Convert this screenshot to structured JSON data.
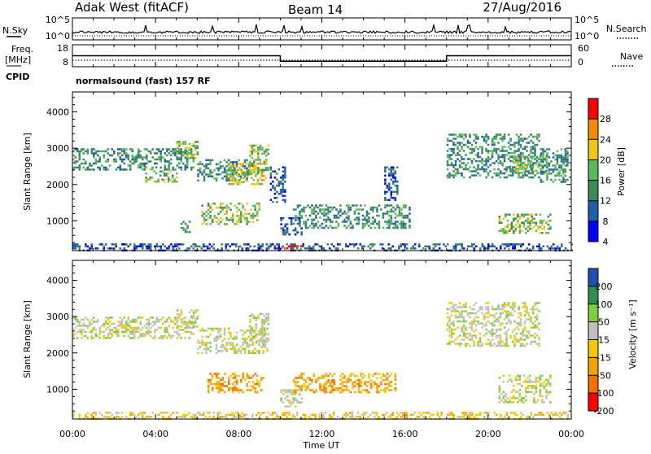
{
  "header": {
    "station": "Adak West (fitACF)",
    "beam": "Beam 14",
    "date": "27/Aug/2016"
  },
  "top_panels": {
    "nsky_label": "N.Sky",
    "nsky_ticks": [
      "10^5",
      "10^0"
    ],
    "nsearch_label": "N.Search",
    "freq_label_1": "Freq.",
    "freq_label_2": "[MHz]",
    "freq_ticks": [
      "18",
      "8"
    ],
    "nave_label": "Nave",
    "nave_ticks": [
      "60",
      "0"
    ],
    "cpid_label": "CPID",
    "cpid_text": "normalsound (fast) 157 RF"
  },
  "chart_data": [
    {
      "type": "heatmap",
      "panel": "power",
      "ylabel": "Slant Range [km]",
      "ylim": [
        180,
        4550
      ],
      "yticks": [
        1000,
        2000,
        3000,
        4000
      ],
      "xlim_hours": [
        0,
        24
      ],
      "colorbar_label": "Power [dB]",
      "colorbar_ticks": [
        "28",
        "24",
        "20",
        "16",
        "12",
        "8",
        "4"
      ],
      "colorbar_colors": [
        "#0000ff",
        "#1f5fa8",
        "#3a8a5a",
        "#5cb85c",
        "#f0c419",
        "#f58c00",
        "#ff0000"
      ],
      "frequency_hours": [
        0,
        10,
        18,
        24
      ],
      "frequency_mhz": [
        13,
        10.5,
        13,
        13
      ],
      "regions": [
        {
          "t0": 0.0,
          "t1": 5.8,
          "r0": 2400,
          "r1": 3000,
          "level": 2
        },
        {
          "t0": 3.5,
          "t1": 5.0,
          "r0": 2100,
          "r1": 2500,
          "level": 3
        },
        {
          "t0": 5.0,
          "t1": 6.0,
          "r0": 2700,
          "r1": 3200,
          "level": 3
        },
        {
          "t0": 6.0,
          "t1": 8.5,
          "r0": 2100,
          "r1": 2700,
          "level": 2
        },
        {
          "t0": 7.5,
          "t1": 9.3,
          "r0": 2000,
          "r1": 2600,
          "level": 4
        },
        {
          "t0": 8.5,
          "t1": 9.4,
          "r0": 2300,
          "r1": 3100,
          "level": 3
        },
        {
          "t0": 6.2,
          "t1": 9.0,
          "r0": 900,
          "r1": 1500,
          "level": 3
        },
        {
          "t0": 5.2,
          "t1": 5.6,
          "r0": 700,
          "r1": 1000,
          "level": 2
        },
        {
          "t0": 9.5,
          "t1": 10.2,
          "r0": 1500,
          "r1": 2500,
          "level": 1
        },
        {
          "t0": 10.6,
          "t1": 16.2,
          "r0": 800,
          "r1": 1450,
          "level": 2
        },
        {
          "t0": 10.0,
          "t1": 11.0,
          "r0": 600,
          "r1": 1100,
          "level": 1
        },
        {
          "t0": 15.0,
          "t1": 15.6,
          "r0": 1600,
          "r1": 2500,
          "level": 1
        },
        {
          "t0": 18.0,
          "t1": 22.5,
          "r0": 2200,
          "r1": 3400,
          "level": 2
        },
        {
          "t0": 21.0,
          "t1": 22.8,
          "r0": 2300,
          "r1": 2800,
          "level": 3
        },
        {
          "t0": 20.5,
          "t1": 23.0,
          "r0": 650,
          "r1": 1200,
          "level": 3
        },
        {
          "t0": 22.5,
          "t1": 23.8,
          "r0": 2100,
          "r1": 3000,
          "level": 2
        },
        {
          "t0": 0.0,
          "t1": 24.0,
          "r0": 180,
          "r1": 380,
          "level": 1
        },
        {
          "t0": 10.0,
          "t1": 11.0,
          "r0": 180,
          "r1": 330,
          "level": 6
        }
      ]
    },
    {
      "type": "heatmap",
      "panel": "velocity",
      "ylabel": "Slant Range [km]",
      "ylim": [
        180,
        4550
      ],
      "yticks": [
        1000,
        2000,
        3000,
        4000
      ],
      "xlim_hours": [
        0,
        24
      ],
      "xticks": [
        "00:00",
        "04:00",
        "08:00",
        "12:00",
        "16:00",
        "20:00",
        "00:00"
      ],
      "xlabel": "Time UT",
      "colorbar_label": "Velocity [m s⁻¹]",
      "colorbar_ticks": [
        "200",
        "100",
        "50",
        "15",
        "-15",
        "-50",
        "-100",
        "-200"
      ],
      "colorbar_colors": [
        "#ff0000",
        "#f56e00",
        "#f5a300",
        "#f5c800",
        "#c0c0c0",
        "#7ccf3c",
        "#2f8f4f",
        "#1f4fb0"
      ],
      "regions": [
        {
          "t0": 0.0,
          "t1": 5.8,
          "r0": 2400,
          "r1": 3000,
          "level": 4
        },
        {
          "t0": 5.0,
          "t1": 6.0,
          "r0": 2700,
          "r1": 3200,
          "level": 4
        },
        {
          "t0": 6.0,
          "t1": 9.4,
          "r0": 2000,
          "r1": 2700,
          "level": 4
        },
        {
          "t0": 8.5,
          "t1": 9.4,
          "r0": 2300,
          "r1": 3100,
          "level": 4
        },
        {
          "t0": 6.5,
          "t1": 9.2,
          "r0": 900,
          "r1": 1450,
          "level": 2
        },
        {
          "t0": 10.6,
          "t1": 15.5,
          "r0": 900,
          "r1": 1450,
          "level": 2
        },
        {
          "t0": 10.0,
          "t1": 11.0,
          "r0": 500,
          "r1": 1000,
          "level": 4
        },
        {
          "t0": 18.0,
          "t1": 22.5,
          "r0": 2200,
          "r1": 3400,
          "level": 4
        },
        {
          "t0": 20.5,
          "t1": 23.0,
          "r0": 650,
          "r1": 1400,
          "level": 4
        },
        {
          "t0": 0.0,
          "t1": 24.0,
          "r0": 180,
          "r1": 380,
          "level": 3
        }
      ]
    }
  ]
}
